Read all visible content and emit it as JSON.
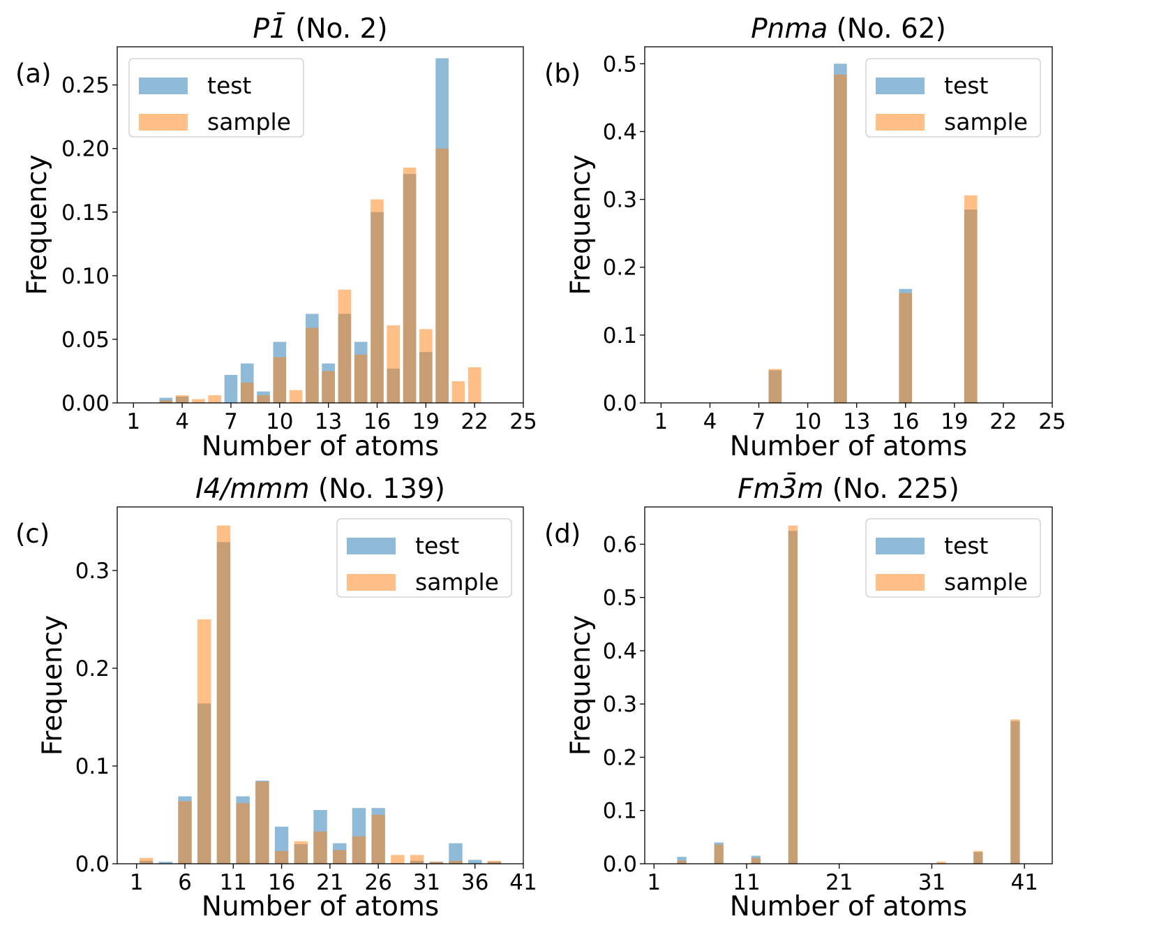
{
  "colors": {
    "test": "#1f77b4",
    "sample": "#ff7f0e",
    "alpha": 0.5
  },
  "chart_data": [
    {
      "type": "bar",
      "panel_label": "(a)",
      "title": {
        "italic": "P1̄",
        "rest": " (No. 2)"
      },
      "xlabel": "Number of atoms",
      "ylabel": "Frequency",
      "xlim": [
        0,
        25
      ],
      "ylim": [
        0,
        0.28
      ],
      "xticks": [
        1,
        4,
        7,
        10,
        13,
        16,
        19,
        22,
        25
      ],
      "yticks": [
        0.0,
        0.05,
        0.1,
        0.15,
        0.2,
        0.25
      ],
      "ytick_labels": [
        "0.00",
        "0.05",
        "0.10",
        "0.15",
        "0.20",
        "0.25"
      ],
      "legend": {
        "entries": [
          "test",
          "sample"
        ],
        "position": "upper-left"
      },
      "x": [
        3,
        4,
        5,
        6,
        7,
        8,
        9,
        10,
        11,
        12,
        13,
        14,
        15,
        16,
        17,
        18,
        19,
        20,
        21,
        22
      ],
      "series": [
        {
          "name": "test",
          "values": [
            0.004,
            0.005,
            0,
            0,
            0.022,
            0.031,
            0.009,
            0.048,
            0,
            0.07,
            0.031,
            0.07,
            0.048,
            0.15,
            0.027,
            0.18,
            0.04,
            0.271,
            0,
            0
          ]
        },
        {
          "name": "sample",
          "values": [
            0.002,
            0.006,
            0.003,
            0.006,
            0,
            0.016,
            0.006,
            0.036,
            0.01,
            0.059,
            0.025,
            0.089,
            0.038,
            0.16,
            0.061,
            0.185,
            0.058,
            0.2,
            0.017,
            0.028
          ]
        }
      ]
    },
    {
      "type": "bar",
      "panel_label": "(b)",
      "title": {
        "italic": "Pnma",
        "rest": " (No. 62)"
      },
      "xlabel": "Number of atoms",
      "ylabel": "Frequency",
      "xlim": [
        0,
        25
      ],
      "ylim": [
        0,
        0.525
      ],
      "xticks": [
        1,
        4,
        7,
        10,
        13,
        16,
        19,
        22,
        25
      ],
      "yticks": [
        0.0,
        0.1,
        0.2,
        0.3,
        0.4,
        0.5
      ],
      "ytick_labels": [
        "0.0",
        "0.1",
        "0.2",
        "0.3",
        "0.4",
        "0.5"
      ],
      "legend": {
        "entries": [
          "test",
          "sample"
        ],
        "position": "upper-right"
      },
      "x": [
        8,
        12,
        16,
        20
      ],
      "series": [
        {
          "name": "test",
          "values": [
            0.048,
            0.5,
            0.168,
            0.285
          ]
        },
        {
          "name": "sample",
          "values": [
            0.05,
            0.484,
            0.162,
            0.306
          ]
        }
      ]
    },
    {
      "type": "bar",
      "panel_label": "(c)",
      "title": {
        "italic": "I4/mmm",
        "rest": " (No. 139)"
      },
      "xlabel": "Number of atoms",
      "ylabel": "Frequency",
      "xlim": [
        -1,
        41
      ],
      "ylim": [
        0,
        0.365
      ],
      "xticks": [
        1,
        6,
        11,
        16,
        21,
        26,
        31,
        36,
        41
      ],
      "yticks": [
        0.0,
        0.1,
        0.2,
        0.3
      ],
      "ytick_labels": [
        "0.0",
        "0.1",
        "0.2",
        "0.3"
      ],
      "legend": {
        "entries": [
          "test",
          "sample"
        ],
        "position": "upper-right"
      },
      "x": [
        2,
        4,
        6,
        8,
        10,
        12,
        14,
        16,
        18,
        20,
        22,
        24,
        26,
        28,
        30,
        32,
        34,
        36,
        38
      ],
      "series": [
        {
          "name": "test",
          "values": [
            0.003,
            0.002,
            0.069,
            0.164,
            0.329,
            0.069,
            0.085,
            0.038,
            0.02,
            0.055,
            0.021,
            0.057,
            0.057,
            0,
            0.003,
            0.002,
            0.021,
            0.004,
            0.002
          ]
        },
        {
          "name": "sample",
          "values": [
            0.006,
            0,
            0.064,
            0.25,
            0.346,
            0.062,
            0.084,
            0.013,
            0.023,
            0.033,
            0.014,
            0.028,
            0.05,
            0.009,
            0.009,
            0.002,
            0.003,
            0,
            0.003
          ]
        }
      ]
    },
    {
      "type": "bar",
      "panel_label": "(d)",
      "title": {
        "italic": "Fm3̄m",
        "rest": " (No. 225)"
      },
      "xlabel": "Number of atoms",
      "ylabel": "Frequency",
      "xlim": [
        0,
        44
      ],
      "ylim": [
        0,
        0.67
      ],
      "xticks": [
        1,
        11,
        21,
        31,
        41
      ],
      "yticks": [
        0.0,
        0.1,
        0.2,
        0.3,
        0.4,
        0.5,
        0.6
      ],
      "ytick_labels": [
        "0.0",
        "0.1",
        "0.2",
        "0.3",
        "0.4",
        "0.5",
        "0.6"
      ],
      "legend": {
        "entries": [
          "test",
          "sample"
        ],
        "position": "upper-right"
      },
      "x": [
        4,
        8,
        12,
        16,
        32,
        36,
        40
      ],
      "series": [
        {
          "name": "test",
          "values": [
            0.013,
            0.04,
            0.015,
            0.625,
            0,
            0.022,
            0.268
          ]
        },
        {
          "name": "sample",
          "values": [
            0.006,
            0.036,
            0.011,
            0.635,
            0.004,
            0.024,
            0.271
          ]
        }
      ]
    }
  ]
}
